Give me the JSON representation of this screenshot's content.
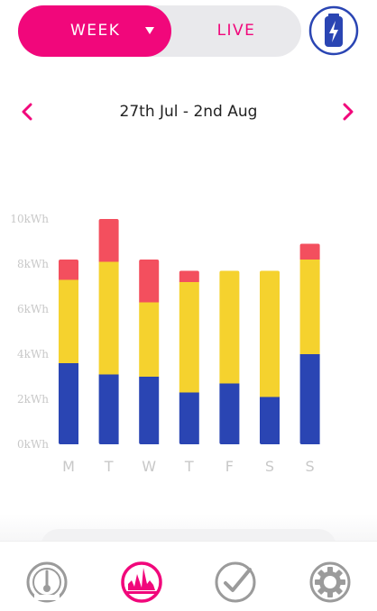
{
  "toggle": {
    "selected_label": "WEEK",
    "other_label": "LIVE"
  },
  "date_nav": {
    "range_label": "27th Jul - 2nd Aug"
  },
  "colors": {
    "accent": "#f1077b",
    "blue": "#2a45b3",
    "yellow": "#f5d22e",
    "red": "#f34f5e",
    "axis_text": "#c8c8c8"
  },
  "icons": {
    "battery": "battery-charging-icon",
    "prev": "chevron-left-icon",
    "next": "chevron-right-icon",
    "tab1": "gauge-icon",
    "tab2": "usage-chart-icon",
    "tab3": "check-circle-icon",
    "tab4": "settings-gear-icon"
  },
  "chart_data": {
    "type": "bar",
    "stacked": true,
    "categories": [
      "M",
      "T",
      "W",
      "T",
      "F",
      "S",
      "S"
    ],
    "series": [
      {
        "values": [
          3.6,
          3.1,
          3.0,
          2.3,
          2.7,
          2.1,
          4.0
        ]
      },
      {
        "values": [
          3.7,
          5.0,
          3.3,
          4.9,
          5.0,
          5.6,
          4.2
        ]
      },
      {
        "values": [
          0.9,
          1.9,
          1.9,
          0.5,
          0,
          0,
          0.7
        ]
      }
    ],
    "ylim": [
      0,
      10
    ],
    "y_ticks": [
      "0kWh",
      "2kWh",
      "4kWh",
      "6kWh",
      "8kWh",
      "10kWh"
    ],
    "grid": false
  },
  "tabs": {
    "active_index": 1
  }
}
